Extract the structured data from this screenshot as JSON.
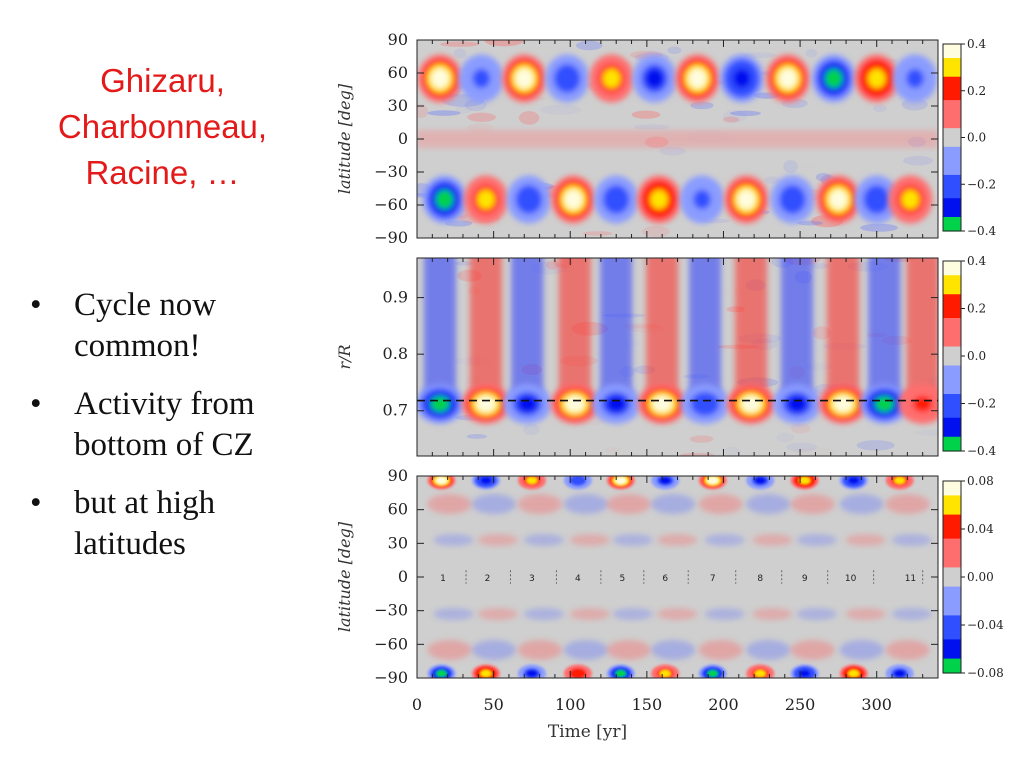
{
  "slide": {
    "title_lines": [
      "Ghizaru,",
      "Charbonneau,",
      "Racine, …"
    ],
    "bullets": [
      "Cycle now common!",
      "Activity from bottom of CZ",
      "but at high latitudes"
    ],
    "bullet_symbol": "•",
    "title_color": "#e41a1a"
  },
  "chart_data": [
    {
      "type": "heatmap",
      "ylabel": "latitude [deg]",
      "yticks": [
        "90",
        "60",
        "30",
        "0",
        "−30",
        "−60",
        "−90"
      ],
      "ylim": [
        -90,
        90
      ],
      "xlim": [
        0,
        340
      ],
      "colorbar": {
        "ticks": [
          "0.4",
          "0.2",
          "0.0",
          "−0.2",
          "−0.4"
        ],
        "range": [
          -0.4,
          0.4
        ]
      },
      "north_blobs": [
        {
          "t": 15,
          "v": 0.38
        },
        {
          "t": 42,
          "v": -0.22
        },
        {
          "t": 70,
          "v": 0.38
        },
        {
          "t": 98,
          "v": -0.28
        },
        {
          "t": 127,
          "v": 0.32
        },
        {
          "t": 155,
          "v": -0.32
        },
        {
          "t": 183,
          "v": 0.4
        },
        {
          "t": 212,
          "v": -0.36
        },
        {
          "t": 242,
          "v": 0.4
        },
        {
          "t": 272,
          "v": -0.38
        },
        {
          "t": 300,
          "v": 0.36
        },
        {
          "t": 325,
          "v": -0.22
        }
      ],
      "south_blobs": [
        {
          "t": 18,
          "v": -0.4
        },
        {
          "t": 45,
          "v": 0.32
        },
        {
          "t": 73,
          "v": -0.24
        },
        {
          "t": 102,
          "v": 0.4
        },
        {
          "t": 130,
          "v": -0.26
        },
        {
          "t": 158,
          "v": 0.34
        },
        {
          "t": 186,
          "v": -0.22
        },
        {
          "t": 215,
          "v": 0.38
        },
        {
          "t": 245,
          "v": -0.24
        },
        {
          "t": 275,
          "v": 0.4
        },
        {
          "t": 300,
          "v": -0.28
        },
        {
          "t": 322,
          "v": 0.32
        }
      ]
    },
    {
      "type": "heatmap",
      "ylabel": "r/R",
      "yticks": [
        "0.9",
        "0.8",
        "0.7"
      ],
      "ylim": [
        0.62,
        0.97
      ],
      "xlim": [
        0,
        340
      ],
      "reference_line_r": 0.718,
      "colorbar": {
        "ticks": [
          "0.4",
          "0.2",
          "0.0",
          "−0.2",
          "−0.4"
        ],
        "range": [
          -0.4,
          0.4
        ]
      },
      "columns": [
        {
          "t": 15,
          "v": -0.4
        },
        {
          "t": 45,
          "v": 0.4
        },
        {
          "t": 72,
          "v": -0.3
        },
        {
          "t": 103,
          "v": 0.4
        },
        {
          "t": 130,
          "v": -0.3
        },
        {
          "t": 160,
          "v": 0.38
        },
        {
          "t": 188,
          "v": -0.26
        },
        {
          "t": 218,
          "v": 0.4
        },
        {
          "t": 248,
          "v": -0.3
        },
        {
          "t": 278,
          "v": 0.4
        },
        {
          "t": 305,
          "v": -0.38
        },
        {
          "t": 330,
          "v": 0.2
        }
      ]
    },
    {
      "type": "heatmap",
      "ylabel": "latitude [deg]",
      "yticks": [
        "90",
        "60",
        "30",
        "0",
        "−30",
        "−60",
        "−90"
      ],
      "ylim": [
        -90,
        90
      ],
      "xlim": [
        0,
        340
      ],
      "xlabel": "Time [yr]",
      "xticks": [
        0,
        50,
        100,
        150,
        200,
        250,
        300
      ],
      "colorbar": {
        "ticks": [
          "0.08",
          "0.04",
          "0.00",
          "−0.04",
          "−0.08"
        ],
        "range": [
          -0.08,
          0.08
        ]
      },
      "cycle_numbers": [
        {
          "label": "1",
          "t": 17
        },
        {
          "label": "2",
          "t": 46
        },
        {
          "label": "3",
          "t": 75
        },
        {
          "label": "4",
          "t": 105
        },
        {
          "label": "5",
          "t": 134
        },
        {
          "label": "6",
          "t": 162
        },
        {
          "label": "7",
          "t": 193
        },
        {
          "label": "8",
          "t": 224
        },
        {
          "label": "9",
          "t": 253
        },
        {
          "label": "10",
          "t": 283
        },
        {
          "label": "11",
          "t": 322
        }
      ],
      "cycle_boundaries": [
        32,
        61,
        91,
        120,
        148,
        177,
        208,
        238,
        268,
        298,
        330
      ],
      "polar_events": [
        {
          "t": 16,
          "v": 0.08
        },
        {
          "t": 45,
          "v": -0.07
        },
        {
          "t": 75,
          "v": 0.06
        },
        {
          "t": 105,
          "v": -0.05
        },
        {
          "t": 133,
          "v": 0.08
        },
        {
          "t": 162,
          "v": -0.06
        },
        {
          "t": 193,
          "v": 0.08
        },
        {
          "t": 224,
          "v": -0.06
        },
        {
          "t": 253,
          "v": 0.07
        },
        {
          "t": 285,
          "v": -0.07
        },
        {
          "t": 315,
          "v": 0.06
        }
      ]
    }
  ]
}
